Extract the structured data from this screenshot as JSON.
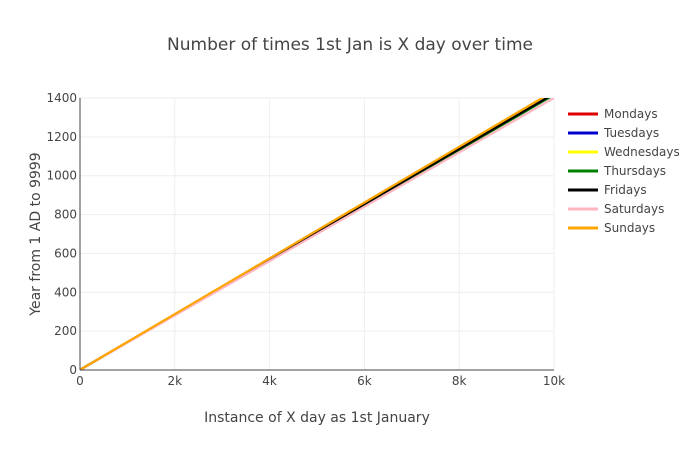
{
  "chart_data": {
    "type": "line",
    "title": "Number of times 1st Jan is X day over time",
    "xlabel": "Instance of X day as 1st January",
    "ylabel": "Year from 1 AD to 9999",
    "xlim": [
      0,
      10000
    ],
    "ylim": [
      0,
      1400
    ],
    "x_ticks": [
      0,
      2000,
      4000,
      6000,
      8000,
      10000
    ],
    "x_tick_labels": [
      "0",
      "2k",
      "4k",
      "6k",
      "8k",
      "10k"
    ],
    "y_ticks": [
      0,
      200,
      400,
      600,
      800,
      1000,
      1200,
      1400
    ],
    "y_tick_labels": [
      "0",
      "200",
      "400",
      "600",
      "800",
      "1000",
      "1200",
      "1400"
    ],
    "grid": true,
    "legend_position": "right",
    "series": [
      {
        "name": "Mondays",
        "color": "#e00000",
        "x": [
          0,
          10000
        ],
        "y": [
          1,
          1420
        ]
      },
      {
        "name": "Tuesdays",
        "color": "#0000cc",
        "x": [
          0,
          10000
        ],
        "y": [
          1,
          1418
        ]
      },
      {
        "name": "Wednesdays",
        "color": "#ffff00",
        "x": [
          0,
          10000
        ],
        "y": [
          1,
          1421
        ]
      },
      {
        "name": "Thursdays",
        "color": "#008000",
        "x": [
          0,
          10000
        ],
        "y": [
          1,
          1416
        ]
      },
      {
        "name": "Fridays",
        "color": "#000000",
        "x": [
          0,
          10000
        ],
        "y": [
          1,
          1422
        ]
      },
      {
        "name": "Saturdays",
        "color": "#ffb6c1",
        "x": [
          0,
          10000
        ],
        "y": [
          1,
          1400
        ]
      },
      {
        "name": "Sundays",
        "color": "#ffa500",
        "x": [
          0,
          10000
        ],
        "y": [
          1,
          1436
        ]
      }
    ]
  }
}
